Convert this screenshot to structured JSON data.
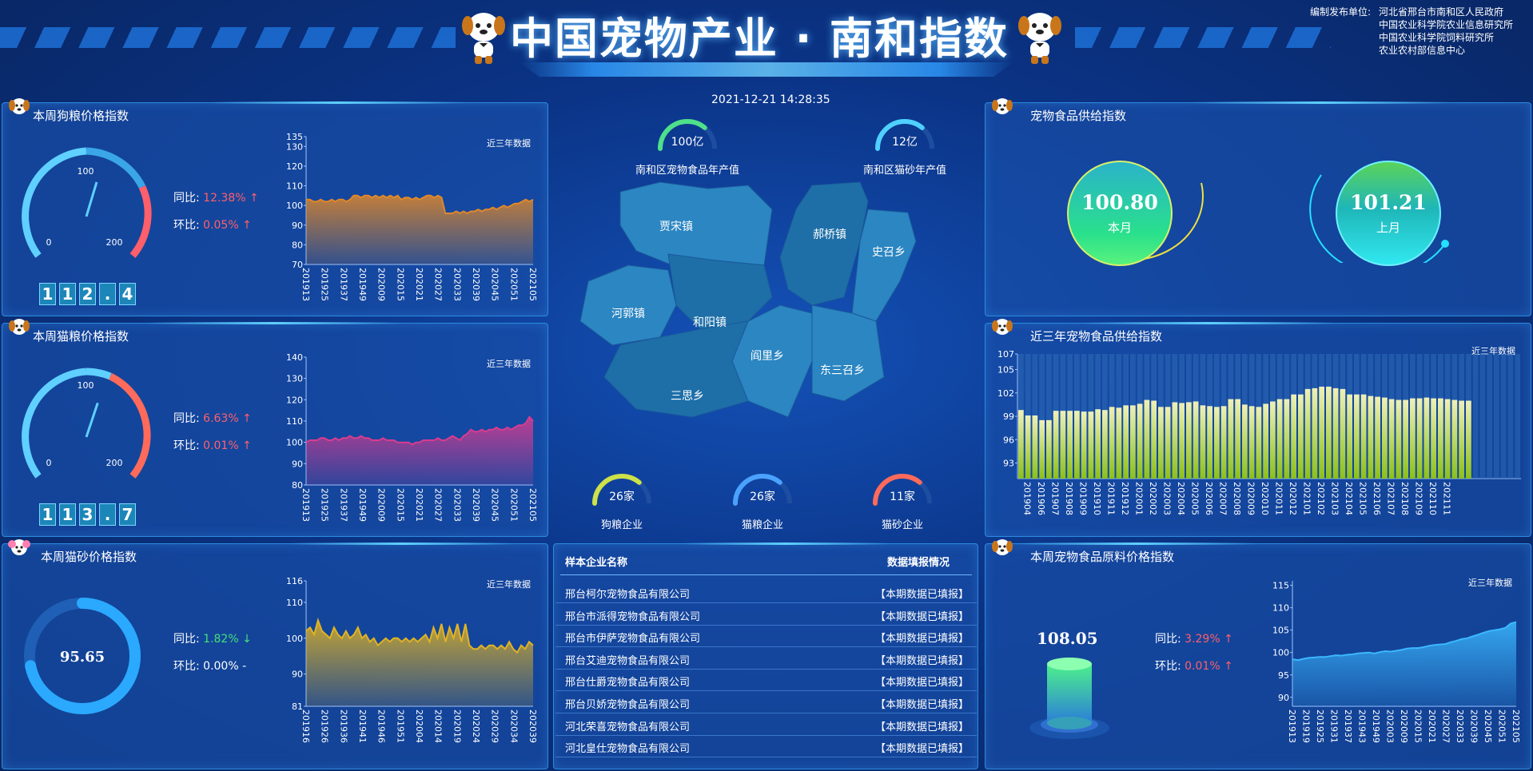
{
  "header": {
    "title": "中国宠物产业 · 南和指数",
    "publisher_label": "编制发布单位:",
    "publishers": [
      "河北省邢台市南和区人民政府",
      "中国农业科学院农业信息研究所",
      "中国农业科学院饲料研究所",
      "农业农村部信息中心"
    ]
  },
  "datetime": "2021-12-21 14:28:35",
  "dog_food": {
    "title": "本周狗粮价格指数",
    "near_label": "近三年数据",
    "gauge": {
      "min": "0",
      "mid": "100",
      "max": "200",
      "value": 112.4
    },
    "digits": [
      "1",
      "1",
      "2",
      ".",
      "4"
    ],
    "yoy_label": "同比:",
    "yoy": "12.38%",
    "yoy_arrow": "↑",
    "mom_label": "环比:",
    "mom": "0.05%",
    "mom_arrow": "↑"
  },
  "cat_food": {
    "title": "本周猫粮价格指数",
    "near_label": "近三年数据",
    "gauge": {
      "min": "0",
      "mid": "100",
      "max": "200",
      "value": 113.7
    },
    "digits": [
      "1",
      "1",
      "3",
      ".",
      "7"
    ],
    "yoy_label": "同比:",
    "yoy": "6.63%",
    "yoy_arrow": "↑",
    "mom_label": "环比:",
    "mom": "0.01%",
    "mom_arrow": "↑"
  },
  "cat_litter": {
    "title": "本周猫砂价格指数",
    "near_label": "近三年数据",
    "ring_value": "95.65",
    "ring_fraction": 0.72,
    "yoy_label": "同比:",
    "yoy": "1.82%",
    "yoy_arrow": "↓",
    "mom_label": "环比:",
    "mom": "0.00%",
    "mom_arrow": "-"
  },
  "center": {
    "stats": [
      {
        "value": "100亿",
        "label": "南和区宠物食品年产值",
        "fraction": 0.72
      },
      {
        "value": "12亿",
        "label": "南和区猫砂年产值",
        "fraction": 0.72
      }
    ],
    "enterprises": [
      {
        "value": "26家",
        "label": "狗粮企业",
        "color": "#cde14a",
        "fraction": 0.72
      },
      {
        "value": "26家",
        "label": "猫粮企业",
        "color": "#4aa2ff",
        "fraction": 0.72
      },
      {
        "value": "11家",
        "label": "猫砂企业",
        "color": "#ff6a5a",
        "fraction": 0.72
      }
    ],
    "map_towns": [
      "贾宋镇",
      "郝桥镇",
      "史召乡",
      "河郭镇",
      "和阳镇",
      "阎里乡",
      "东三召乡",
      "三思乡"
    ]
  },
  "table": {
    "col1": "样本企业名称",
    "col2": "数据填报情况",
    "rows": [
      {
        "name": "邢台柯尔宠物食品有限公司",
        "status": "【本期数据已填报】"
      },
      {
        "name": "邢台市派得宠物食品有限公司",
        "status": "【本期数据已填报】"
      },
      {
        "name": "邢台市伊萨宠物食品有限公司",
        "status": "【本期数据已填报】"
      },
      {
        "name": "邢台艾迪宠物食品有限公司",
        "status": "【本期数据已填报】"
      },
      {
        "name": "邢台仕爵宠物食品有限公司",
        "status": "【本期数据已填报】"
      },
      {
        "name": "邢台贝娇宠物食品有限公司",
        "status": "【本期数据已填报】"
      },
      {
        "name": "河北荣喜宠物食品有限公司",
        "status": "【本期数据已填报】"
      },
      {
        "name": "河北皇仕宠物食品有限公司",
        "status": "【本期数据已填报】"
      }
    ]
  },
  "supply": {
    "title": "宠物食品供给指数",
    "this_month": {
      "value": "100.80",
      "label": "本月"
    },
    "last_month": {
      "value": "101.21",
      "label": "上月"
    }
  },
  "supply3y": {
    "title": "近三年宠物食品供给指数",
    "near_label": "近三年数据"
  },
  "raw": {
    "title": "本周宠物食品原料价格指数",
    "near_label": "近三年数据",
    "value": "108.05",
    "yoy_label": "同比:",
    "yoy": "3.29%",
    "yoy_arrow": "↑",
    "mom_label": "环比:",
    "mom": "0.01%",
    "mom_arrow": "↑"
  },
  "chart_data": [
    {
      "type": "area",
      "name": "dog_food",
      "ylim": [
        70,
        135
      ],
      "yticks": [
        70,
        80,
        90,
        100,
        110,
        120,
        130,
        135
      ],
      "color": "#e0882a",
      "xticks": [
        "201913",
        "201925",
        "201937",
        "201949",
        "202009",
        "202015",
        "202021",
        "202027",
        "202033",
        "202039",
        "202045",
        "202051",
        "202105"
      ],
      "values": [
        103,
        103,
        102,
        102,
        103,
        102,
        102,
        103,
        102,
        103,
        103,
        102,
        103,
        105,
        105,
        104,
        105,
        105,
        104,
        105,
        104,
        105,
        104,
        105,
        104,
        105,
        103,
        104,
        104,
        103,
        104,
        103,
        104,
        105,
        105,
        104,
        105,
        104,
        96,
        96,
        96,
        97,
        96,
        97,
        96,
        97,
        97,
        98,
        97,
        98,
        98,
        99,
        98,
        99,
        100,
        99,
        100,
        101,
        101,
        102,
        103,
        102,
        103
      ]
    },
    {
      "type": "area",
      "name": "cat_food",
      "ylim": [
        80,
        140
      ],
      "yticks": [
        80,
        90,
        100,
        110,
        120,
        130,
        140
      ],
      "color": "#d83c8f",
      "xticks": [
        "201913",
        "201925",
        "201937",
        "201949",
        "202009",
        "202015",
        "202021",
        "202027",
        "202033",
        "202039",
        "202045",
        "202051",
        "202105"
      ],
      "values": [
        100,
        101,
        101,
        101,
        102,
        102,
        101,
        101,
        102,
        101,
        102,
        102,
        103,
        102,
        102,
        103,
        102,
        102,
        101,
        101,
        101,
        102,
        101,
        101,
        101,
        100,
        100,
        100,
        100,
        99,
        100,
        100,
        101,
        101,
        101,
        101,
        102,
        101,
        101,
        102,
        103,
        102,
        101,
        103,
        104,
        106,
        105,
        105,
        106,
        105,
        106,
        106,
        107,
        106,
        106,
        107,
        106,
        107,
        108,
        108,
        109,
        112,
        110
      ]
    },
    {
      "type": "area",
      "name": "cat_litter",
      "ylim": [
        81,
        116
      ],
      "yticks": [
        81,
        90,
        100,
        110,
        116
      ],
      "color": "#e2b322",
      "xticks": [
        "201916",
        "201926",
        "201936",
        "201941",
        "201946",
        "201951",
        "202004",
        "202014",
        "202019",
        "202024",
        "202029",
        "202034",
        "202039"
      ],
      "values": [
        102,
        103,
        101,
        105,
        102,
        101,
        100,
        103,
        101,
        100,
        102,
        100,
        101,
        103,
        100,
        101,
        99,
        100,
        98,
        99,
        100,
        99,
        100,
        100,
        99,
        100,
        99,
        100,
        99,
        100,
        101,
        99,
        103,
        100,
        104,
        99,
        103,
        100,
        104,
        99,
        104,
        98,
        97,
        97,
        98,
        97,
        98,
        98,
        97,
        98,
        97,
        99,
        97,
        96,
        98,
        97,
        99,
        98
      ]
    },
    {
      "type": "bar",
      "name": "supply3y",
      "ylim": [
        91,
        107
      ],
      "yticks": [
        93,
        96,
        99,
        102,
        105,
        107
      ],
      "color": "#b7d96a",
      "xticks": [
        "201904",
        "201906",
        "201907",
        "201908",
        "201909",
        "201910",
        "201911",
        "201912",
        "202001",
        "202002",
        "202003",
        "202004",
        "202005",
        "202006",
        "202007",
        "202008",
        "202009",
        "202010",
        "202011",
        "202012",
        "202101",
        "202102",
        "202103",
        "202104",
        "202105",
        "202106",
        "202107",
        "202108",
        "202109",
        "202110",
        "202111"
      ],
      "values": [
        99.8,
        99.1,
        99.1,
        98.5,
        98.5,
        99.7,
        99.7,
        99.7,
        99.7,
        99.6,
        99.6,
        99.9,
        99.8,
        100.2,
        100.1,
        100.4,
        100.4,
        100.6,
        101.1,
        101.0,
        100.2,
        100.2,
        100.8,
        100.7,
        100.8,
        100.9,
        100.4,
        100.3,
        100.2,
        100.3,
        101.2,
        101.2,
        100.5,
        100.3,
        100.2,
        100.6,
        100.9,
        101.2,
        101.2,
        101.8,
        101.8,
        102.5,
        102.6,
        102.8,
        102.8,
        102.6,
        102.5,
        101.8,
        101.8,
        101.8,
        101.6,
        101.5,
        101.4,
        101.2,
        101.1,
        101.1,
        101.3,
        101.3,
        101.4,
        101.3,
        101.3,
        101.2,
        101.1,
        101.0,
        101.0
      ]
    },
    {
      "type": "area",
      "name": "raw",
      "ylim": [
        88,
        116
      ],
      "yticks": [
        90,
        95,
        100,
        105,
        110,
        115
      ],
      "color": "#3bb8ff",
      "xticks": [
        "201913",
        "201919",
        "201925",
        "201931",
        "201937",
        "201943",
        "201949",
        "202003",
        "202009",
        "202015",
        "202021",
        "202027",
        "202033",
        "202039",
        "202045",
        "202051",
        "202105"
      ],
      "values": [
        98.5,
        98.3,
        98.6,
        98.8,
        98.9,
        99,
        99,
        99.2,
        99.4,
        99.3,
        99.5,
        99.6,
        99.8,
        99.9,
        100,
        99.8,
        100.1,
        100.3,
        100.2,
        100.4,
        100.6,
        100.9,
        101,
        101,
        101.2,
        101.5,
        101.7,
        101.8,
        101.9,
        102.3,
        102.6,
        103,
        103.2,
        103.6,
        104,
        104.4,
        104.8,
        105,
        105.2,
        105.5,
        106.5,
        106.8
      ]
    }
  ]
}
